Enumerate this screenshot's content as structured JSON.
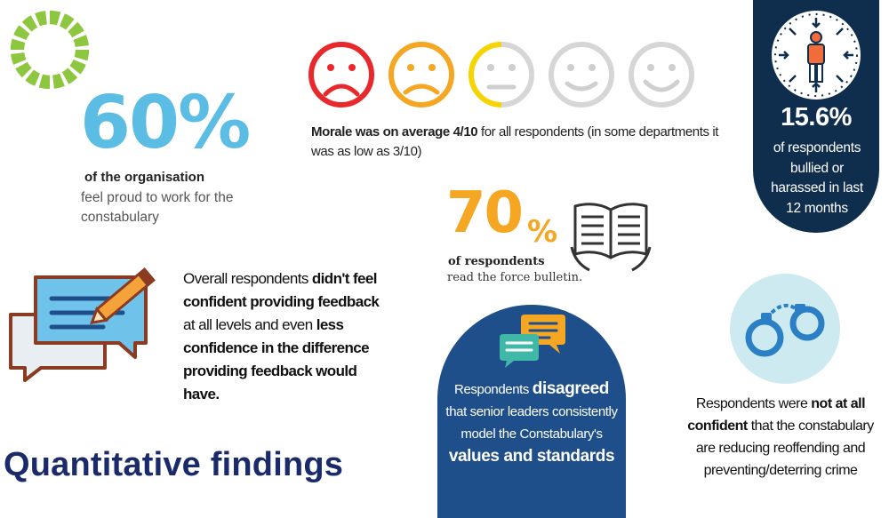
{
  "colors": {
    "blue_light": "#5bbde4",
    "orange": "#f5a623",
    "navy": "#0f2e4d",
    "royal": "#1f4f8a",
    "title": "#1b2a6b",
    "logo_green": "#8dc63f",
    "sad_red": "#e8282b"
  },
  "icons": [
    "logo-ring-icon",
    "sad-face-icon",
    "frown-face-icon",
    "neutral-face-icon",
    "smile-face-icon",
    "happy-face-icon",
    "clock-person-icon",
    "open-book-icon",
    "feedback-pencil-icon",
    "chat-bubbles-icon",
    "handcuffs-icon"
  ],
  "morale": {
    "bold": "Morale was on average 4/10",
    "rest": " for all respondents (in some departments it was as low as 3/10)",
    "rating_out_of_10": 4
  },
  "proud": {
    "value": "60%",
    "bold": "of the organisation",
    "rest": "feel proud to work for the constabulary"
  },
  "bullied": {
    "value": "15.6%",
    "text": "of respondents bullied or harassed in last 12 months"
  },
  "bulletin": {
    "value": "70",
    "pct": "%",
    "line1": "of respondents",
    "line2": "read the force bulletin."
  },
  "feedback": {
    "t1": "Overall respondents ",
    "b1": "didn't feel confident providing feedback",
    "t2": " at all levels and even ",
    "b2": "less confidence in the difference providing feedback would have."
  },
  "leaders": {
    "t1": "Respondents ",
    "b1": "disagreed",
    "t2": "that senior leaders consistently model the Constabulary's ",
    "b2": "values and standards"
  },
  "reoffend": {
    "t1": "Respondents were ",
    "b1": "not at all confident",
    "t2": " that the constabulary are reducing reoffending and preventing/deterring crime"
  },
  "title": "Quantitative findings"
}
